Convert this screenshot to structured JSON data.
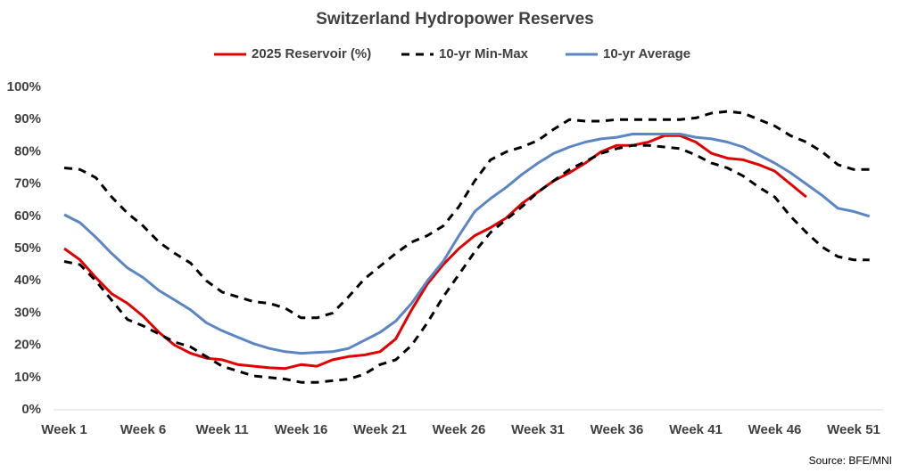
{
  "chart_data": {
    "type": "line",
    "title": "Switzerland Hydropower Reserves",
    "source": "Source: BFE/MNI",
    "categories": [
      "Week 1",
      null,
      null,
      null,
      null,
      "Week 6",
      null,
      null,
      null,
      null,
      "Week 11",
      null,
      null,
      null,
      null,
      "Week 16",
      null,
      null,
      null,
      null,
      "Week 21",
      null,
      null,
      null,
      null,
      "Week 26",
      null,
      null,
      null,
      null,
      "Week 31",
      null,
      null,
      null,
      null,
      "Week 36",
      null,
      null,
      null,
      null,
      "Week 41",
      null,
      null,
      null,
      null,
      "Week 46",
      null,
      null,
      null,
      null,
      "Week 51",
      null
    ],
    "series": [
      {
        "name": "2025 Reservoir (%)",
        "color": "#e00000",
        "values": [
          50,
          46.5,
          41,
          36,
          33,
          29,
          24,
          20,
          17.5,
          16,
          15.5,
          14,
          13.5,
          13,
          12.8,
          14,
          13.5,
          15.5,
          16.5,
          17,
          18,
          22,
          31,
          39,
          45,
          50,
          54,
          56.5,
          59.5,
          64,
          67.5,
          71,
          73.5,
          76.5,
          80,
          82,
          82,
          83,
          85,
          85,
          83,
          79.5,
          78,
          77.5,
          76,
          74,
          70,
          66,
          null,
          null,
          null,
          null
        ]
      },
      {
        "name": "10-yr Min-Max",
        "color": "#000000",
        "dash": true,
        "values": [
          75,
          74.5,
          72,
          66,
          61,
          57,
          52,
          48.5,
          45.5,
          40,
          36.5,
          35,
          33.5,
          33,
          31.5,
          28.5,
          28.5,
          30,
          35,
          40.5,
          44.5,
          48.5,
          52,
          54,
          57,
          63,
          71,
          77.5,
          80,
          81.5,
          83.5,
          87,
          90,
          89.5,
          89.5,
          90,
          90,
          90,
          90,
          90,
          90.5,
          92,
          92.5,
          92,
          90,
          88,
          85,
          83,
          80,
          76,
          74.5,
          74.5
        ],
        "lower": [
          46,
          45,
          40,
          34,
          28,
          26,
          23.5,
          21,
          19.5,
          16.5,
          13.5,
          12,
          10.5,
          10,
          9.5,
          8.5,
          8.5,
          9,
          9.5,
          11,
          14,
          15.5,
          20,
          27,
          35,
          42,
          49,
          55,
          59,
          63,
          67.5,
          71,
          74.5,
          77,
          79.5,
          81,
          82,
          82,
          81.5,
          81,
          79,
          76.5,
          75,
          72.5,
          69,
          66,
          60,
          55,
          50.5,
          47.5,
          46.5,
          46.5
        ]
      },
      {
        "name": "10-yr Average",
        "color": "#5b86c4",
        "values": [
          60.5,
          58,
          53.5,
          48.5,
          44,
          41,
          37,
          34,
          31,
          27,
          24.5,
          22.5,
          20.5,
          19,
          18,
          17.5,
          17.8,
          18,
          19,
          21.5,
          24,
          27.5,
          33,
          40,
          46,
          54,
          61.5,
          65.5,
          69,
          73,
          76.5,
          79.5,
          81.5,
          83,
          84,
          84.5,
          85.5,
          85.5,
          85.5,
          85.5,
          84.5,
          84,
          83,
          81.5,
          79,
          76.5,
          73.5,
          70,
          66.5,
          62.5,
          61.5,
          60
        ]
      }
    ],
    "ylim": [
      0,
      100
    ],
    "yticks": [
      {
        "value": 0,
        "label": "0%"
      },
      {
        "value": 10,
        "label": "10%"
      },
      {
        "value": 20,
        "label": "20%"
      },
      {
        "value": 30,
        "label": "30%"
      },
      {
        "value": 40,
        "label": "40%"
      },
      {
        "value": 50,
        "label": "50%"
      },
      {
        "value": 60,
        "label": "60%"
      },
      {
        "value": 70,
        "label": "70%"
      },
      {
        "value": 80,
        "label": "80%"
      },
      {
        "value": 90,
        "label": "90%"
      },
      {
        "value": 100,
        "label": "100%"
      }
    ],
    "grid": false
  }
}
